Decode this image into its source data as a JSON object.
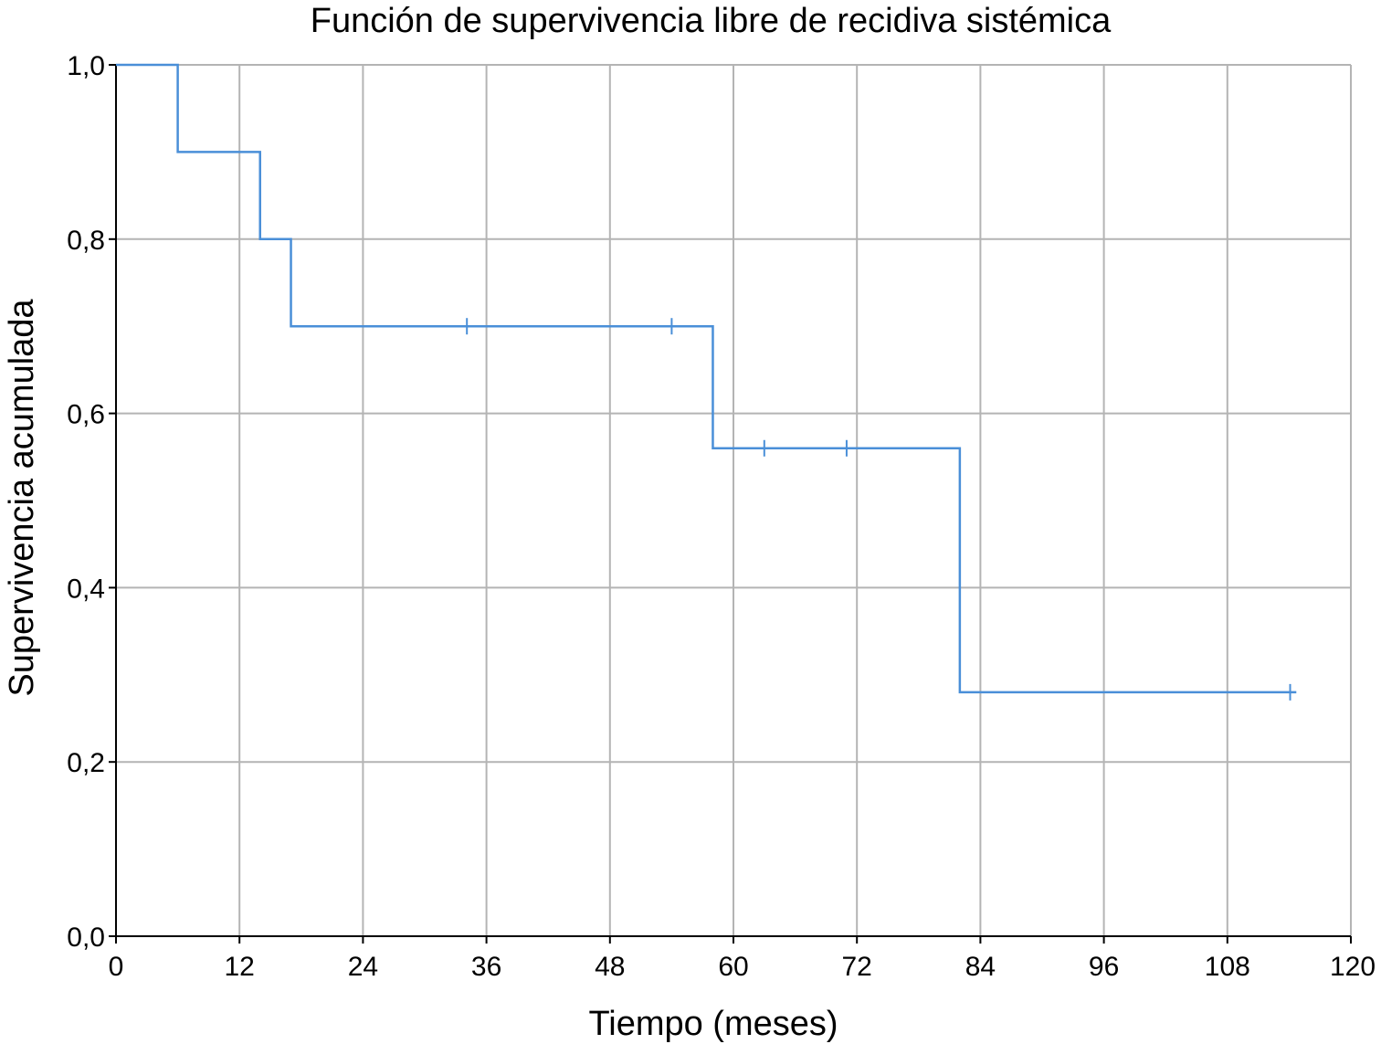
{
  "chart_data": {
    "type": "line",
    "subtype": "kaplan-meier step",
    "title": "Función de supervivencia libre de recidiva sistémica",
    "xlabel": "Tiempo (meses)",
    "ylabel": "Supervivencia acumulada",
    "xlim": [
      0,
      120
    ],
    "ylim": [
      0,
      1
    ],
    "xticks": [
      "0",
      "12",
      "24",
      "36",
      "48",
      "60",
      "72",
      "84",
      "96",
      "108",
      "120"
    ],
    "yticks": [
      "0,0",
      "0,2",
      "0,4",
      "0,6",
      "0,8",
      "1,0"
    ],
    "grid": true,
    "legend": "none",
    "line_color": "#4a8fd8",
    "grid_color": "#b4b4b4",
    "steps": [
      {
        "x": 0,
        "y": 1.0
      },
      {
        "x": 6,
        "y": 0.9
      },
      {
        "x": 14,
        "y": 0.8
      },
      {
        "x": 17,
        "y": 0.7
      },
      {
        "x": 58,
        "y": 0.56
      },
      {
        "x": 82,
        "y": 0.28
      }
    ],
    "end_x": 114.7,
    "censored": [
      {
        "x": 34.1,
        "y": 0.7
      },
      {
        "x": 54,
        "y": 0.7
      },
      {
        "x": 63,
        "y": 0.56
      },
      {
        "x": 71,
        "y": 0.56
      },
      {
        "x": 114.1,
        "y": 0.28
      }
    ]
  }
}
